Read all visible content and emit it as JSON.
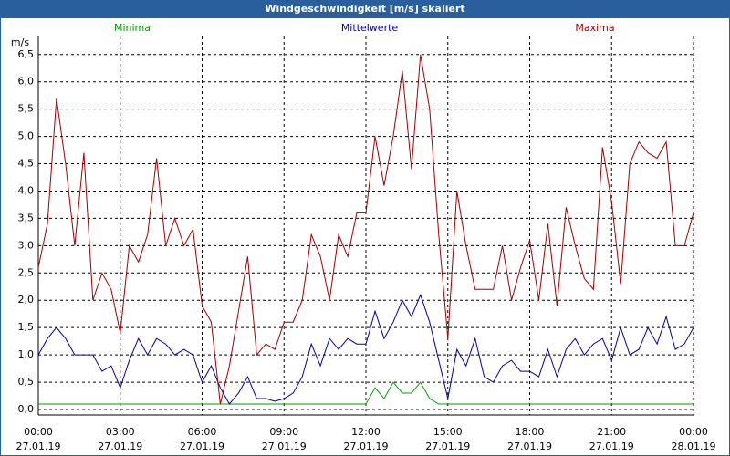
{
  "chart_data": {
    "type": "line",
    "title": "Windgeschwindigkeit [m/s] skaliert",
    "ylabel": "m/s",
    "x": [
      0,
      20,
      40,
      60,
      80,
      100,
      120,
      140,
      160,
      180,
      200,
      220,
      240,
      260,
      280,
      300,
      320,
      340,
      360,
      380,
      400,
      420,
      440,
      460,
      480,
      500,
      520,
      540,
      560,
      580,
      600,
      620,
      640,
      660,
      680,
      700,
      720,
      740,
      760,
      780,
      800,
      820,
      840,
      860,
      880,
      900,
      920,
      940,
      960,
      980,
      1000,
      1020,
      1040,
      1060,
      1080,
      1100,
      1120,
      1140,
      1160,
      1180,
      1200,
      1220,
      1240,
      1260,
      1280,
      1300,
      1320,
      1340,
      1360,
      1380,
      1400,
      1420,
      1440
    ],
    "series": [
      {
        "name": "Minima",
        "color": "#00a000",
        "values": [
          0.1,
          0.1,
          0.1,
          0.1,
          0.1,
          0.1,
          0.1,
          0.1,
          0.1,
          0.1,
          0.1,
          0.1,
          0.1,
          0.1,
          0.1,
          0.1,
          0.1,
          0.1,
          0.1,
          0.1,
          0.1,
          0.1,
          0.1,
          0.1,
          0.1,
          0.1,
          0.1,
          0.1,
          0.1,
          0.1,
          0.1,
          0.1,
          0.1,
          0.1,
          0.1,
          0.1,
          0.1,
          0.4,
          0.2,
          0.5,
          0.3,
          0.3,
          0.5,
          0.2,
          0.1,
          0.1,
          0.1,
          0.1,
          0.1,
          0.1,
          0.1,
          0.1,
          0.1,
          0.1,
          0.1,
          0.1,
          0.1,
          0.1,
          0.1,
          0.1,
          0.1,
          0.1,
          0.1,
          0.1,
          0.1,
          0.1,
          0.1,
          0.1,
          0.1,
          0.1,
          0.1,
          0.1,
          0.1
        ]
      },
      {
        "name": "Mittelwerte",
        "color": "#0000a0",
        "values": [
          1.0,
          1.3,
          1.5,
          1.3,
          1.0,
          1.0,
          1.0,
          0.7,
          0.8,
          0.4,
          0.9,
          1.3,
          1.0,
          1.3,
          1.2,
          1.0,
          1.1,
          1.0,
          0.5,
          0.8,
          0.4,
          0.1,
          0.3,
          0.6,
          0.2,
          0.2,
          0.15,
          0.2,
          0.3,
          0.6,
          1.2,
          0.8,
          1.3,
          1.1,
          1.3,
          1.2,
          1.2,
          1.8,
          1.3,
          1.6,
          2.0,
          1.7,
          2.1,
          1.6,
          0.9,
          0.2,
          1.1,
          0.8,
          1.3,
          0.6,
          0.5,
          0.8,
          0.9,
          0.7,
          0.7,
          0.6,
          1.1,
          0.6,
          1.1,
          1.3,
          1.0,
          1.2,
          1.3,
          0.9,
          1.5,
          1.0,
          1.1,
          1.5,
          1.2,
          1.7,
          1.1,
          1.2,
          1.5
        ]
      },
      {
        "name": "Maxima",
        "color": "#a00000",
        "values": [
          2.6,
          3.4,
          5.7,
          4.5,
          3.0,
          4.7,
          2.0,
          2.5,
          2.2,
          1.4,
          3.0,
          2.7,
          3.2,
          4.6,
          3.0,
          3.5,
          3.0,
          3.3,
          1.9,
          1.6,
          0.1,
          0.8,
          1.8,
          2.8,
          1.0,
          1.2,
          1.1,
          1.6,
          1.6,
          2.0,
          3.2,
          2.8,
          2.0,
          3.2,
          2.8,
          3.6,
          3.6,
          5.0,
          4.1,
          5.0,
          6.2,
          4.4,
          6.5,
          5.5,
          3.2,
          1.3,
          4.0,
          3.0,
          2.2,
          2.2,
          2.2,
          3.0,
          2.0,
          2.6,
          3.1,
          2.0,
          3.4,
          1.9,
          3.7,
          3.0,
          2.4,
          2.2,
          4.8,
          3.8,
          2.3,
          4.5,
          4.9,
          4.7,
          4.6,
          4.9,
          3.0,
          3.0,
          3.6
        ]
      }
    ],
    "xlim": [
      0,
      1440
    ],
    "xticks": [
      {
        "value": 0,
        "label": "00:00"
      },
      {
        "value": 180,
        "label": "03:00"
      },
      {
        "value": 360,
        "label": "06:00"
      },
      {
        "value": 540,
        "label": "09:00"
      },
      {
        "value": 720,
        "label": "12:00"
      },
      {
        "value": 900,
        "label": "15:00"
      },
      {
        "value": 1080,
        "label": "18:00"
      },
      {
        "value": 1260,
        "label": "21:00"
      },
      {
        "value": 1440,
        "label": "00:00"
      }
    ],
    "xtick_dates": [
      "27.01.19",
      "27.01.19",
      "27.01.19",
      "27.01.19",
      "27.01.19",
      "27.01.19",
      "27.01.19",
      "27.01.19",
      "28.01.19"
    ],
    "ylim": [
      -0.1,
      6.83
    ],
    "yticks": [
      {
        "value": 0,
        "label": "0,0"
      },
      {
        "value": 0.5,
        "label": "0,5"
      },
      {
        "value": 1,
        "label": "1,0"
      },
      {
        "value": 1.5,
        "label": "1,5"
      },
      {
        "value": 2,
        "label": "2,0"
      },
      {
        "value": 2.5,
        "label": "2,5"
      },
      {
        "value": 3,
        "label": "3,0"
      },
      {
        "value": 3.5,
        "label": "3,5"
      },
      {
        "value": 4,
        "label": "4,0"
      },
      {
        "value": 4.5,
        "label": "4,5"
      },
      {
        "value": 5,
        "label": "5,0"
      },
      {
        "value": 5.5,
        "label": "5,5"
      },
      {
        "value": 6,
        "label": "6,0"
      },
      {
        "value": 6.5,
        "label": "6,5"
      }
    ],
    "grid": true
  }
}
